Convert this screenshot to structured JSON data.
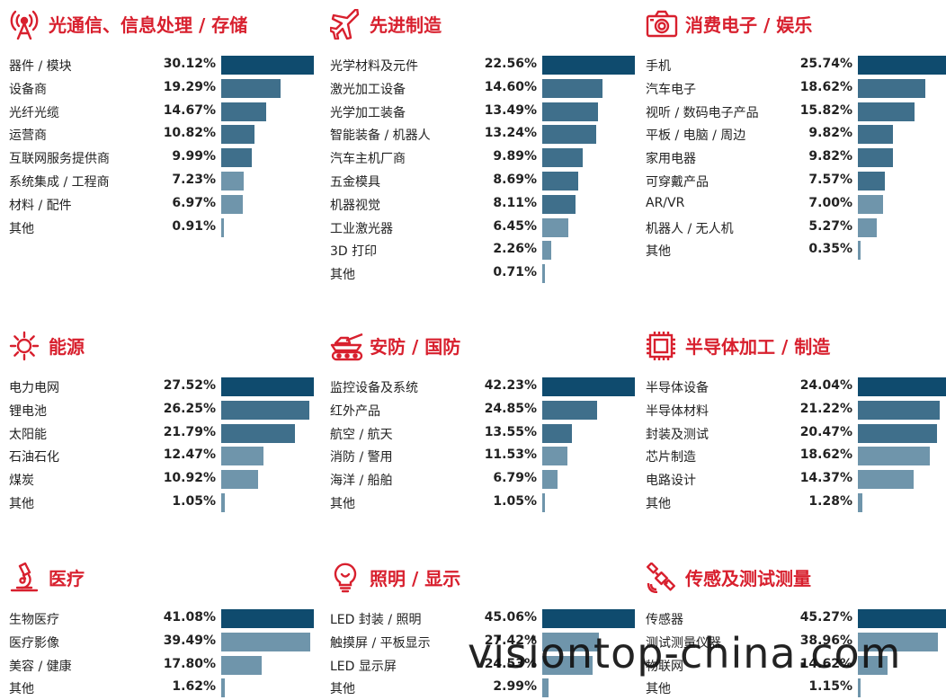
{
  "colors": {
    "title": "#d8202e",
    "bar_dark": "#0f4b6e",
    "bar_mid": "#3f6f8b",
    "bar_light": "#6f95ab",
    "text": "#222222"
  },
  "watermark": "visiontop-china.com",
  "chart_data": [
    {
      "type": "bar",
      "orientation": "horizontal",
      "icon": "antenna-icon",
      "title": "光通信、信息处理 / 存储",
      "categories": [
        "器件 / 模块",
        "设备商",
        "光纤光缆",
        "运营商",
        "互联网服务提供商",
        "系统集成 / 工程商",
        "材料 / 配件",
        "其他"
      ],
      "values": [
        30.12,
        19.29,
        14.67,
        10.82,
        9.99,
        7.23,
        6.97,
        0.91
      ],
      "labels": [
        "30.12%",
        "19.29%",
        "14.67%",
        "10.82%",
        "9.99%",
        "7.23%",
        "6.97%",
        "0.91%"
      ]
    },
    {
      "type": "bar",
      "orientation": "horizontal",
      "icon": "airplane-icon",
      "title": "先进制造",
      "categories": [
        "光学材料及元件",
        "激光加工设备",
        "光学加工装备",
        "智能装备 / 机器人",
        "汽车主机厂商",
        "五金模具",
        "机器视觉",
        "工业激光器",
        "3D 打印",
        "其他"
      ],
      "values": [
        22.56,
        14.6,
        13.49,
        13.24,
        9.89,
        8.69,
        8.11,
        6.45,
        2.26,
        0.71
      ],
      "labels": [
        "22.56%",
        "14.60%",
        "13.49%",
        "13.24%",
        "9.89%",
        "8.69%",
        "8.11%",
        "6.45%",
        "2.26%",
        "0.71%"
      ]
    },
    {
      "type": "bar",
      "orientation": "horizontal",
      "icon": "camera-icon",
      "title": "消费电子 / 娱乐",
      "categories": [
        "手机",
        "汽车电子",
        "视听 / 数码电子产品",
        "平板 / 电脑 / 周边",
        "家用电器",
        "可穿戴产品",
        "AR/VR",
        "机器人 / 无人机",
        "其他"
      ],
      "values": [
        25.74,
        18.62,
        15.82,
        9.82,
        9.82,
        7.57,
        7.0,
        5.27,
        0.35
      ],
      "labels": [
        "25.74%",
        "18.62%",
        "15.82%",
        "9.82%",
        "9.82%",
        "7.57%",
        "7.00%",
        "5.27%",
        "0.35%"
      ]
    },
    {
      "type": "bar",
      "orientation": "horizontal",
      "icon": "sun-icon",
      "title": "能源",
      "categories": [
        "电力电网",
        "锂电池",
        "太阳能",
        "石油石化",
        "煤炭",
        "其他"
      ],
      "values": [
        27.52,
        26.25,
        21.79,
        12.47,
        10.92,
        1.05
      ],
      "labels": [
        "27.52%",
        "26.25%",
        "21.79%",
        "12.47%",
        "10.92%",
        "1.05%"
      ]
    },
    {
      "type": "bar",
      "orientation": "horizontal",
      "icon": "tank-icon",
      "title": "安防 / 国防",
      "categories": [
        "监控设备及系统",
        "红外产品",
        "航空 / 航天",
        "消防 / 警用",
        "海洋 / 船舶",
        "其他"
      ],
      "values": [
        42.23,
        24.85,
        13.55,
        11.53,
        6.79,
        1.05
      ],
      "labels": [
        "42.23%",
        "24.85%",
        "13.55%",
        "11.53%",
        "6.79%",
        "1.05%"
      ]
    },
    {
      "type": "bar",
      "orientation": "horizontal",
      "icon": "chip-icon",
      "title": "半导体加工 / 制造",
      "categories": [
        "半导体设备",
        "半导体材料",
        "封装及测试",
        "芯片制造",
        "电路设计",
        "其他"
      ],
      "values": [
        24.04,
        21.22,
        20.47,
        18.62,
        14.37,
        1.28
      ],
      "labels": [
        "24.04%",
        "21.22%",
        "20.47%",
        "18.62%",
        "14.37%",
        "1.28%"
      ]
    },
    {
      "type": "bar",
      "orientation": "horizontal",
      "icon": "microscope-icon",
      "title": "医疗",
      "categories": [
        "生物医疗",
        "医疗影像",
        "美容 / 健康",
        "其他"
      ],
      "values": [
        41.08,
        39.49,
        17.8,
        1.62
      ],
      "labels": [
        "41.08%",
        "39.49%",
        "17.80%",
        "1.62%"
      ]
    },
    {
      "type": "bar",
      "orientation": "horizontal",
      "icon": "lightbulb-icon",
      "title": "照明 / 显示",
      "categories": [
        "LED 封装 / 照明",
        "触摸屏 / 平板显示",
        "LED 显示屏",
        "其他"
      ],
      "values": [
        45.06,
        27.42,
        24.53,
        2.99
      ],
      "labels": [
        "45.06%",
        "27.42%",
        "24.53%",
        "2.99%"
      ]
    },
    {
      "type": "bar",
      "orientation": "horizontal",
      "icon": "satellite-icon",
      "title": "传感及测试测量",
      "categories": [
        "传感器",
        "测试测量仪器",
        "物联网",
        "其他"
      ],
      "values": [
        45.27,
        38.96,
        14.62,
        1.15
      ],
      "labels": [
        "45.27%",
        "38.96%",
        "14.62%",
        "1.15%"
      ]
    }
  ]
}
